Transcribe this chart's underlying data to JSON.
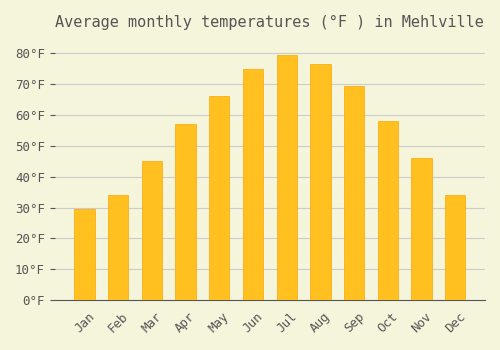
{
  "title": "Average monthly temperatures (°F ) in Mehlville",
  "months": [
    "Jan",
    "Feb",
    "Mar",
    "Apr",
    "May",
    "Jun",
    "Jul",
    "Aug",
    "Sep",
    "Oct",
    "Nov",
    "Dec"
  ],
  "temperatures": [
    29.5,
    34.0,
    45.0,
    57.0,
    66.0,
    75.0,
    79.5,
    76.5,
    69.5,
    58.0,
    46.0,
    34.0
  ],
  "bar_color": "#FFC020",
  "bar_edge_color": "#FFA500",
  "background_color": "#F5F5DC",
  "grid_color": "#CCCCCC",
  "text_color": "#555555",
  "ylim": [
    0,
    84
  ],
  "yticks": [
    0,
    10,
    20,
    30,
    40,
    50,
    60,
    70,
    80
  ],
  "ylabel_suffix": "°F",
  "title_fontsize": 11,
  "tick_fontsize": 9
}
